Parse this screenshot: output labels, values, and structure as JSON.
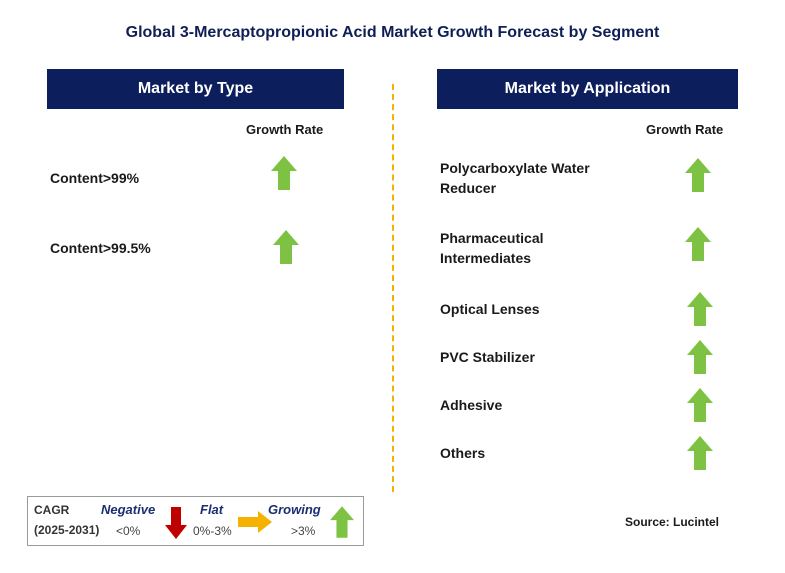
{
  "title": "Global 3-Mercaptopropionic Acid Market Growth Forecast by Segment",
  "left_panel": {
    "header": "Market by Type",
    "growth_label": "Growth Rate",
    "items": [
      {
        "label_lines": [
          "Content>99%"
        ],
        "trend": "growing"
      },
      {
        "label_lines": [
          "Content>99.5%"
        ],
        "trend": "growing"
      }
    ]
  },
  "right_panel": {
    "header": "Market by Application",
    "growth_label": "Growth Rate",
    "items": [
      {
        "label_lines": [
          "Polycarboxylate Water",
          "Reducer"
        ],
        "trend": "growing"
      },
      {
        "label_lines": [
          "Pharmaceutical",
          "Intermediates"
        ],
        "trend": "growing"
      },
      {
        "label_lines": [
          "Optical Lenses"
        ],
        "trend": "growing"
      },
      {
        "label_lines": [
          "PVC Stabilizer"
        ],
        "trend": "growing"
      },
      {
        "label_lines": [
          "Adhesive"
        ],
        "trend": "growing"
      },
      {
        "label_lines": [
          "Others"
        ],
        "trend": "growing"
      }
    ]
  },
  "legend": {
    "cagr_label": "CAGR",
    "period": "(2025-2031)",
    "negative": {
      "label": "Negative",
      "range": "<0%"
    },
    "flat": {
      "label": "Flat",
      "range": "0%-3%"
    },
    "growing": {
      "label": "Growing",
      "range": ">3%"
    }
  },
  "source": "Source: Lucintel",
  "colors": {
    "header_bg": "#0c1f5c",
    "divider": "#f5b301",
    "arrow_up": "#7dc242",
    "arrow_down": "#c00000",
    "arrow_flat": "#f5b301"
  }
}
